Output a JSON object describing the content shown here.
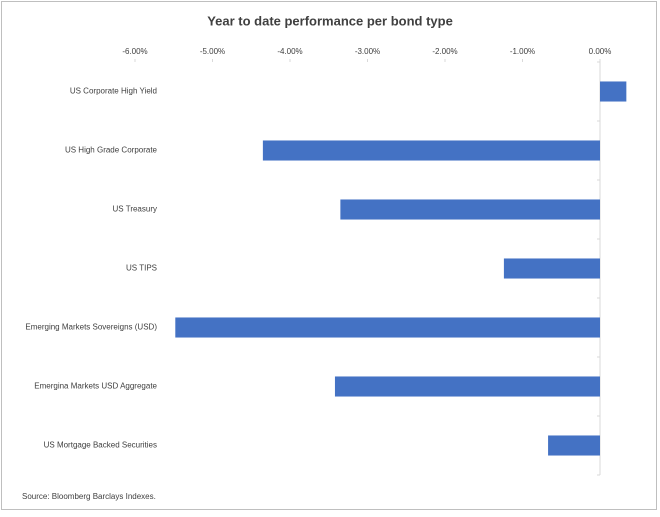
{
  "chart_data": {
    "type": "bar",
    "orientation": "horizontal",
    "title": "Year to date performance per bond type",
    "categories": [
      "US Corporate High Yield",
      "US High Grade Corporate",
      "US Treasury",
      "US TIPS",
      "Emerging Markets Sovereigns (USD)",
      "Emergina Markets USD Aggregate",
      "US Mortgage Backed Securities"
    ],
    "values": [
      0.34,
      -4.35,
      -3.35,
      -1.24,
      -5.48,
      -3.42,
      -0.67
    ],
    "color": "#4472c4",
    "xlim": [
      -6,
      0.5
    ],
    "xticks": [
      {
        "value": -6,
        "label": "-6.00%"
      },
      {
        "value": -5,
        "label": "-5.00%"
      },
      {
        "value": -4,
        "label": "-4.00%"
      },
      {
        "value": -3,
        "label": "-3.00%"
      },
      {
        "value": -2,
        "label": "-2.00%"
      },
      {
        "value": -1,
        "label": "-1.00%"
      },
      {
        "value": 0,
        "label": "0.00%"
      }
    ],
    "note": "Source: Bloomberg Barclays Indexes."
  }
}
